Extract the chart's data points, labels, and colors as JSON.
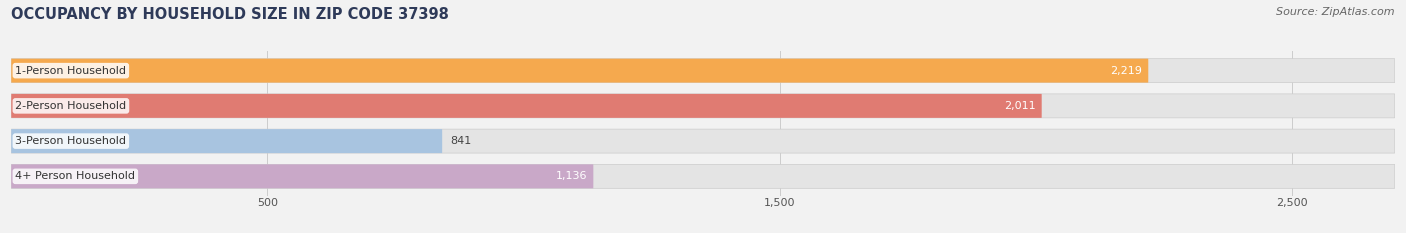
{
  "title": "OCCUPANCY BY HOUSEHOLD SIZE IN ZIP CODE 37398",
  "source_text": "Source: ZipAtlas.com",
  "categories": [
    "1-Person Household",
    "2-Person Household",
    "3-Person Household",
    "4+ Person Household"
  ],
  "values": [
    2219,
    2011,
    841,
    1136
  ],
  "bar_colors": [
    "#F5A94E",
    "#E07B72",
    "#A8C4E0",
    "#C9A8C8"
  ],
  "xlim": [
    0,
    2700
  ],
  "xticks": [
    500,
    1500,
    2500
  ],
  "title_color": "#2E3A59",
  "title_fontsize": 10.5,
  "source_fontsize": 8,
  "bar_label_fontsize": 8,
  "category_label_fontsize": 8,
  "tick_fontsize": 8,
  "background_color": "#F2F2F2",
  "bar_background_color": "#E4E4E4",
  "bar_height": 0.68,
  "rounding_size": 0.15
}
